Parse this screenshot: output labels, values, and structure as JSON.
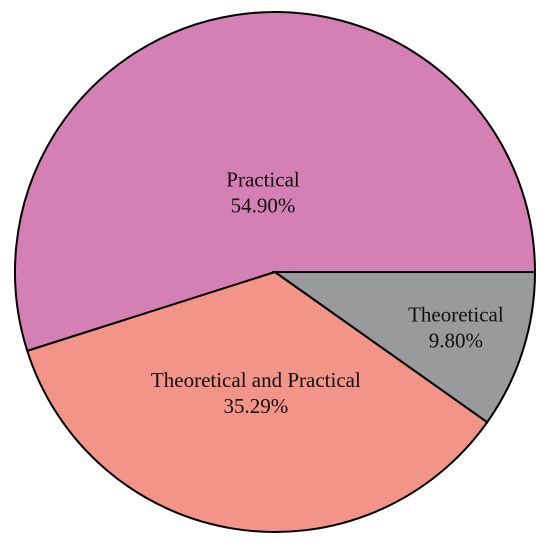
{
  "chart_data": {
    "type": "pie",
    "categories": [
      "Practical",
      "Theoretical and Practical",
      "Theoretical"
    ],
    "values": [
      54.9,
      35.29,
      9.8
    ],
    "value_labels": [
      "54.90%",
      "35.29%",
      "9.80%"
    ],
    "colors": [
      "#d580b5",
      "#f29487",
      "#999a9c"
    ]
  }
}
